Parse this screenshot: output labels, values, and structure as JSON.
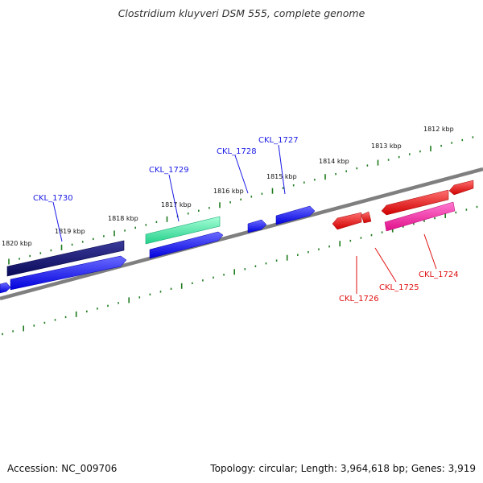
{
  "title": "Clostridium kluyveri DSM 555, complete genome",
  "footer": {
    "accession": "Accession: NC_009706",
    "stats": "Topology: circular; Length: 3,964,618 bp; Genes: 3,919"
  },
  "colors": {
    "backbone": "#7f7f7f",
    "tick": "#1e7b1e",
    "forward_label": "#1a1ae6",
    "reverse_label": "#e01010"
  },
  "kbp_labels": [
    "1820 kbp",
    "1819 kbp",
    "1818 kbp",
    "1817 kbp",
    "1816 kbp",
    "1815 kbp",
    "1814 kbp",
    "1813 kbp",
    "1812 kbp"
  ],
  "gene_labels": [
    {
      "text": "CKL_1730",
      "strand": "forward"
    },
    {
      "text": "CKL_1729",
      "strand": "forward"
    },
    {
      "text": "CKL_1728",
      "strand": "forward"
    },
    {
      "text": "CKL_1727",
      "strand": "forward"
    },
    {
      "text": "CKL_1726",
      "strand": "reverse"
    },
    {
      "text": "CKL_1725",
      "strand": "reverse"
    },
    {
      "text": "CKL_1724",
      "strand": "reverse"
    }
  ]
}
